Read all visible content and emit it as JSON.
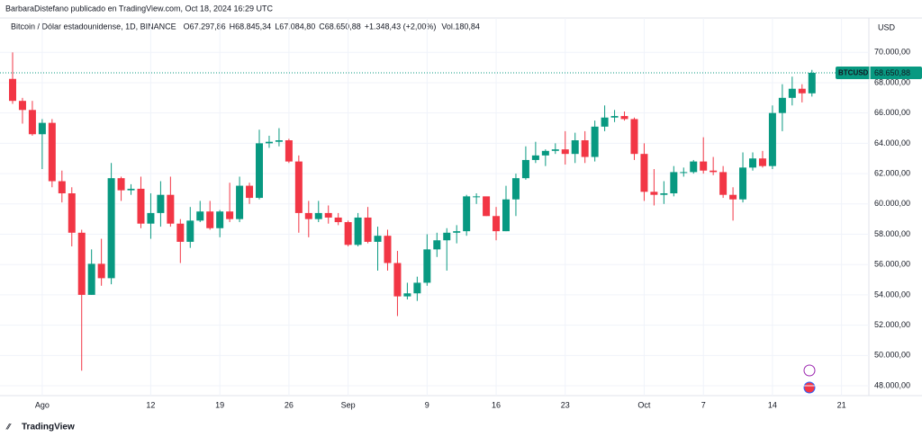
{
  "header": {
    "credit": "BarbaraDistefano publicado en TradingView.com, Oct 18, 2024 16:29 UTC",
    "footer": "TradingView"
  },
  "chart_data": {
    "type": "candlestick",
    "title": "Bitcoin / Dólar estadounidense, 1D, BINANCE",
    "legend_values": [
      "O67.297,86",
      "H68.845,34",
      "L67.084,80",
      "C68.650,88",
      "+1.348,43 (+2,00%)"
    ],
    "volume_label": "Vol.180,84",
    "currency": "USD",
    "symbol": "BTCUSD",
    "last_label": "68.650,88",
    "up_color": "#089981",
    "down_color": "#f23645",
    "categories": [
      null,
      null,
      null,
      "Ago",
      null,
      null,
      null,
      null,
      null,
      null,
      null,
      null,
      null,
      null,
      "12",
      null,
      null,
      null,
      null,
      null,
      null,
      "19",
      null,
      null,
      null,
      null,
      null,
      null,
      "26",
      null,
      null,
      null,
      null,
      null,
      "Sep",
      null,
      null,
      null,
      null,
      null,
      null,
      null,
      "9",
      null,
      null,
      null,
      null,
      null,
      null,
      "16",
      null,
      null,
      null,
      null,
      null,
      null,
      "23",
      null,
      null,
      null,
      null,
      null,
      null,
      null,
      "Oct",
      null,
      null,
      null,
      null,
      null,
      "7",
      null,
      null,
      null,
      null,
      null,
      null,
      "14",
      null,
      null,
      null,
      null,
      null,
      null,
      "21"
    ],
    "open": [
      68250,
      66800,
      66200,
      64600,
      65350,
      61500,
      60700,
      58100,
      54000,
      56050,
      55100,
      61700,
      60900,
      61000,
      58700,
      59400,
      60600,
      58700,
      57500,
      58900,
      59500,
      58400,
      59500,
      59000,
      61200,
      60400,
      64000,
      64100,
      64200,
      62800,
      59400,
      59000,
      59400,
      59100,
      58800,
      57300,
      59100,
      57500,
      57900,
      56100,
      53900,
      54100,
      54800,
      57000,
      57600,
      58100,
      58200,
      60500,
      60500,
      59200,
      58200,
      60300,
      61700,
      62900,
      63200,
      63500,
      63600,
      63300,
      64200,
      63100,
      65100,
      65700,
      65800,
      65600,
      63300,
      60800,
      60600,
      60700,
      62100,
      62100,
      62800,
      62200,
      62100,
      60600,
      60300,
      62400,
      63000,
      62500,
      66000,
      67000,
      67600,
      67297.86,
      null,
      null,
      null
    ],
    "high": [
      70000,
      67000,
      66800,
      65600,
      65600,
      62200,
      61100,
      58300,
      57000,
      57700,
      62700,
      61800,
      61300,
      61800,
      60700,
      61500,
      61800,
      59000,
      59800,
      60200,
      60200,
      59600,
      61400,
      61800,
      61400,
      64900,
      64500,
      65000,
      64300,
      63200,
      60200,
      60200,
      59900,
      59400,
      58900,
      59400,
      59800,
      58500,
      58300,
      56900,
      54800,
      55200,
      58000,
      58100,
      58400,
      58600,
      60600,
      60700,
      60400,
      59800,
      61200,
      62000,
      63800,
      64100,
      63600,
      64000,
      64800,
      64700,
      64800,
      65500,
      66500,
      66200,
      66100,
      65700,
      64000,
      62300,
      61500,
      62500,
      62400,
      62900,
      64400,
      63100,
      62500,
      61100,
      63400,
      63400,
      63500,
      66500,
      67900,
      68400,
      67900,
      68845.34,
      null,
      null,
      null
    ],
    "low": [
      66600,
      65300,
      64500,
      62300,
      61100,
      60100,
      57200,
      49000,
      54000,
      54600,
      54700,
      60200,
      60600,
      58400,
      57700,
      58500,
      58500,
      56100,
      57100,
      58800,
      58300,
      57800,
      58800,
      58800,
      60000,
      60300,
      63700,
      63800,
      62700,
      58100,
      57800,
      58800,
      58700,
      58600,
      57200,
      57200,
      57400,
      55600,
      55600,
      52600,
      53700,
      53600,
      54600,
      56500,
      55600,
      57400,
      57900,
      60000,
      59200,
      57600,
      58200,
      59200,
      61600,
      62700,
      62500,
      63300,
      62600,
      62700,
      62700,
      62800,
      64800,
      65400,
      65500,
      62900,
      60200,
      59900,
      60000,
      60500,
      61800,
      62000,
      62000,
      61900,
      60400,
      58900,
      60100,
      62200,
      62400,
      62300,
      64800,
      66500,
      66700,
      67084.8,
      null,
      null,
      null
    ],
    "close": [
      66800,
      66200,
      64600,
      65350,
      61500,
      60700,
      58100,
      54000,
      56050,
      55100,
      61700,
      60900,
      61000,
      58700,
      59400,
      60600,
      58700,
      57500,
      58900,
      59500,
      58400,
      59500,
      59000,
      61200,
      60400,
      64000,
      64100,
      64200,
      62800,
      59400,
      59000,
      59400,
      59100,
      58800,
      57300,
      59100,
      57500,
      57900,
      56100,
      53900,
      54100,
      54800,
      57000,
      57600,
      58100,
      58200,
      60500,
      60500,
      59200,
      58200,
      60300,
      61700,
      62900,
      63200,
      63500,
      63600,
      63300,
      64200,
      63100,
      65100,
      65700,
      65800,
      65600,
      63300,
      60800,
      60600,
      60700,
      62100,
      62100,
      62800,
      62200,
      62100,
      60600,
      60300,
      62400,
      63000,
      62500,
      66000,
      67000,
      67600,
      67300,
      68650.88,
      null,
      null,
      null
    ],
    "ylim": [
      47350,
      72270
    ],
    "yticks": [
      {
        "value": 48000,
        "label": "48.000,00"
      },
      {
        "value": 50000,
        "label": "50.000,00"
      },
      {
        "value": 52000,
        "label": "52.000,00"
      },
      {
        "value": 54000,
        "label": "54.000,00"
      },
      {
        "value": 56000,
        "label": "56.000,00"
      },
      {
        "value": 58000,
        "label": "58.000,00"
      },
      {
        "value": 60000,
        "label": "60.000,00"
      },
      {
        "value": 62000,
        "label": "62.000,00"
      },
      {
        "value": 64000,
        "label": "64.000,00"
      },
      {
        "value": 66000,
        "label": "66.000,00"
      },
      {
        "value": 68000,
        "label": "68.000,00"
      },
      {
        "value": 70000,
        "label": "70.000,00"
      }
    ],
    "grid": true
  }
}
